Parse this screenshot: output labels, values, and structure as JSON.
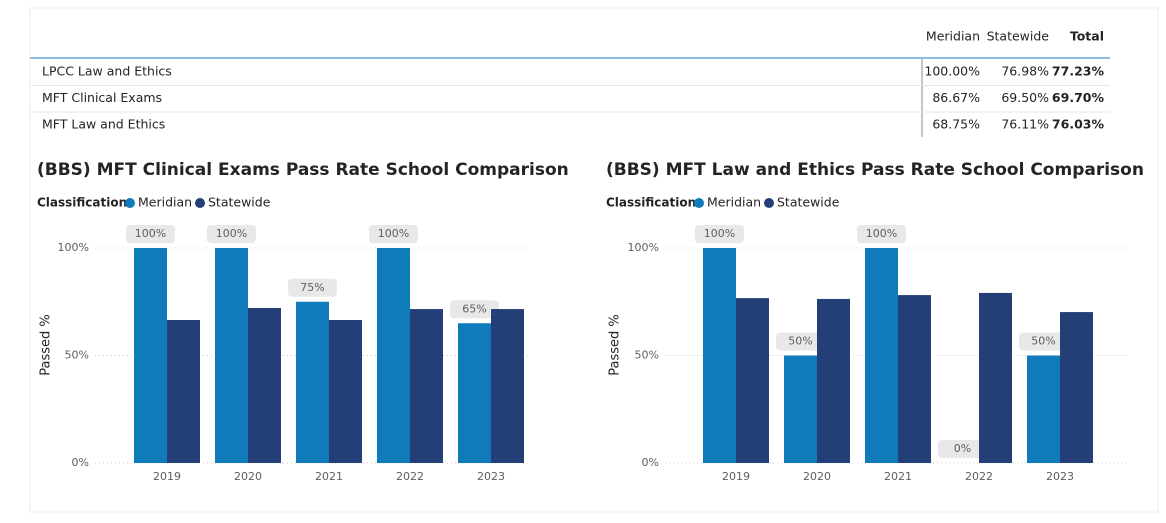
{
  "table": {
    "columns": [
      "Meridian",
      "Statewide",
      "Total"
    ],
    "rows": [
      [
        "LPCC Law and Ethics",
        "100.00%",
        "76.98%",
        "77.23%"
      ],
      [
        "MFT Clinical Exams",
        "86.67%",
        "69.50%",
        "69.70%"
      ],
      [
        "MFT Law and Ethics",
        "68.75%",
        "76.11%",
        "76.03%"
      ]
    ]
  },
  "chart_data": [
    {
      "type": "bar",
      "title": "(BBS) MFT Clinical Exams Pass Rate School Comparison",
      "legend_title": "Classification",
      "y_label": "Passed %",
      "categories": [
        "2019",
        "2020",
        "2021",
        "2022",
        "2023"
      ],
      "series": [
        {
          "name": "Meridian",
          "color": "#0f7bbb",
          "values": [
            100,
            100,
            75,
            100,
            65
          ],
          "value_labels": [
            "100%",
            "100%",
            "75%",
            "100%",
            "65%"
          ]
        },
        {
          "name": "Statewide",
          "color": "#243f78",
          "values": [
            66.5,
            72.1,
            66.5,
            71.6,
            71.6
          ]
        }
      ],
      "ylim": [
        0,
        100
      ],
      "yticks": [
        {
          "value": 0,
          "label": "0%"
        },
        {
          "value": 50,
          "label": "50%"
        },
        {
          "value": 100,
          "label": "100%"
        }
      ],
      "grid": true
    },
    {
      "type": "bar",
      "title": "(BBS) MFT Law and Ethics Pass Rate School Comparison",
      "legend_title": "Classification",
      "y_label": "Passed %",
      "categories": [
        "2019",
        "2020",
        "2021",
        "2022",
        "2023"
      ],
      "series": [
        {
          "name": "Meridian",
          "color": "#0f7bbb",
          "values": [
            100,
            50,
            100,
            0,
            50
          ],
          "value_labels": [
            "100%",
            "50%",
            "100%",
            "0%",
            "50%"
          ]
        },
        {
          "name": "Statewide",
          "color": "#243f78",
          "values": [
            76.7,
            76.3,
            78.1,
            79.1,
            70.2
          ]
        }
      ],
      "ylim": [
        0,
        100
      ],
      "yticks": [
        {
          "value": 0,
          "label": "0%"
        },
        {
          "value": 50,
          "label": "50%"
        },
        {
          "value": 100,
          "label": "100%"
        }
      ],
      "grid": true
    }
  ]
}
